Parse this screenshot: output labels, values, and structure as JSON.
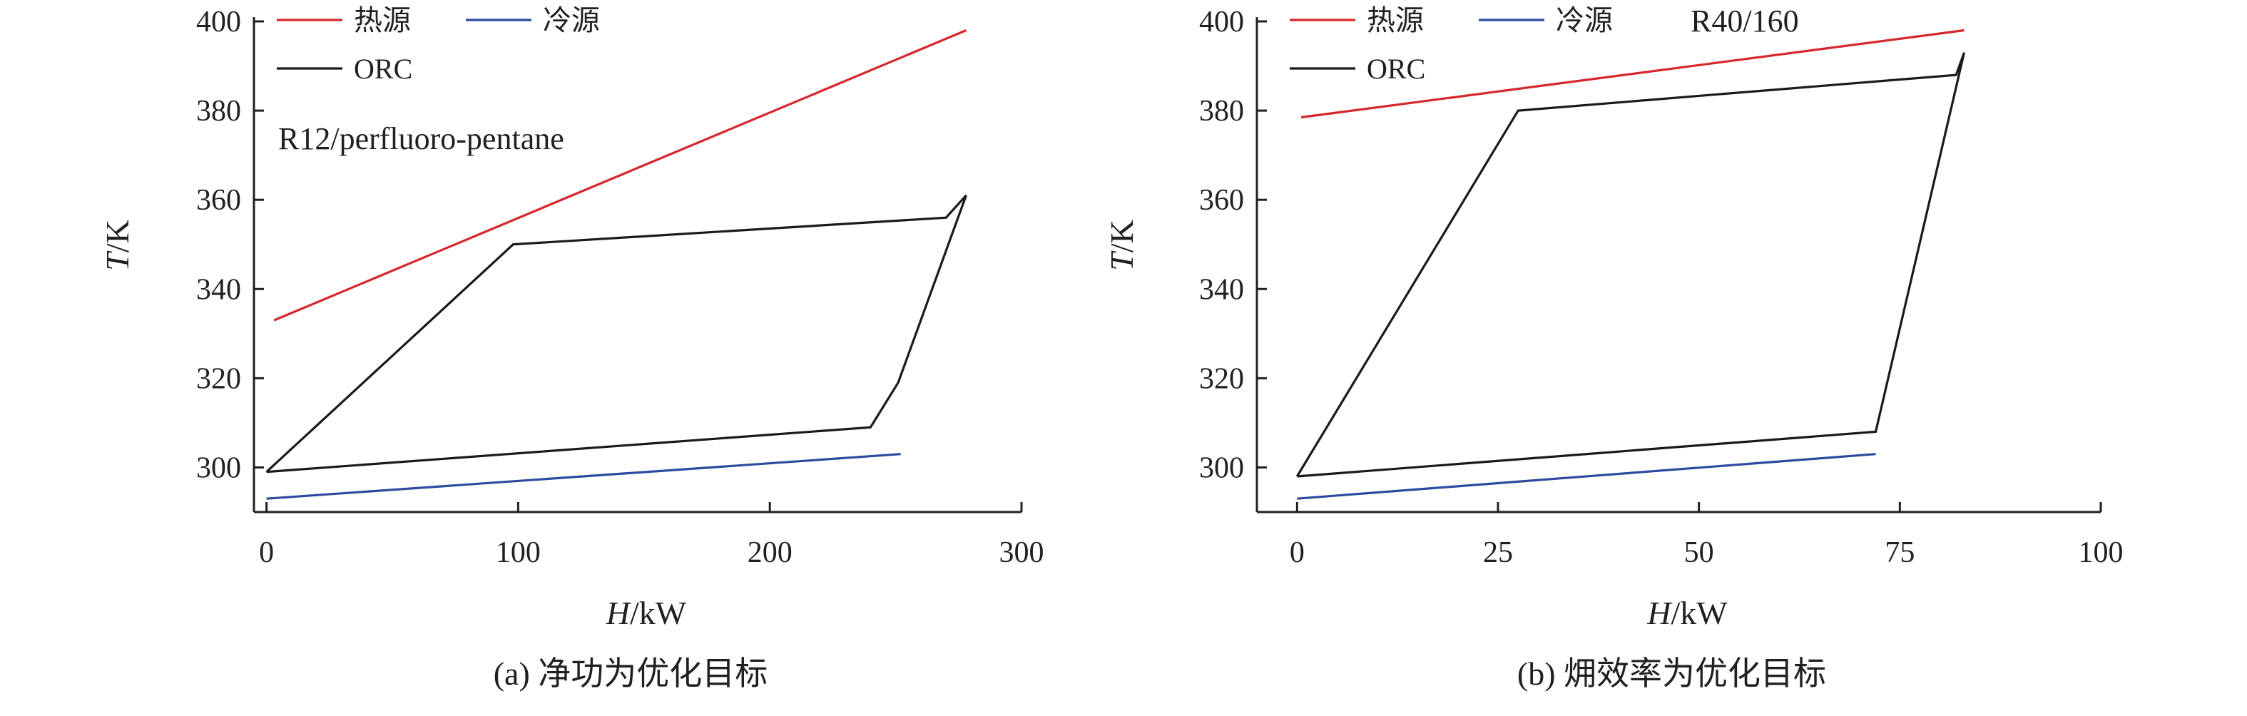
{
  "figure": {
    "colors": {
      "hot": "#d7262b",
      "cold": "#2c4b9f",
      "orc": "#1a1a1a",
      "axis": "#231f20"
    }
  },
  "chart_data": [
    {
      "id": "a",
      "type": "line",
      "caption": "(a) 净功为优化目标",
      "annotation": "R12/perfluoro-pentane",
      "xlabel": {
        "italic": "H",
        "rest": "/kW"
      },
      "ylabel": {
        "italic": "T",
        "rest": "/K"
      },
      "xlim": [
        -5,
        300
      ],
      "ylim": [
        290,
        400
      ],
      "xticks": [
        0,
        100,
        200,
        300
      ],
      "yticks": [
        300,
        320,
        340,
        360,
        380,
        400
      ],
      "legend": {
        "position": "top-left",
        "entries": [
          "热源",
          "冷源",
          "ORC"
        ]
      },
      "series": [
        {
          "name": "热源",
          "color_key": "hot",
          "points": [
            [
              3,
              333
            ],
            [
              278,
              398
            ]
          ]
        },
        {
          "name": "冷源",
          "color_key": "cold",
          "points": [
            [
              0,
              293
            ],
            [
              252,
              303
            ]
          ]
        },
        {
          "name": "ORC",
          "color_key": "orc",
          "points": [
            [
              0,
              299
            ],
            [
              98,
              350
            ],
            [
              270,
              356
            ],
            [
              278,
              361
            ],
            [
              251,
              319
            ],
            [
              240,
              309
            ],
            [
              0,
              299
            ]
          ]
        }
      ]
    },
    {
      "id": "b",
      "type": "line",
      "caption": "(b) 㶲效率为优化目标",
      "annotation": "R40/160",
      "xlabel": {
        "italic": "H",
        "rest": "/kW"
      },
      "ylabel": {
        "italic": "T",
        "rest": "/K"
      },
      "xlim": [
        -5,
        100
      ],
      "ylim": [
        290,
        400
      ],
      "xticks": [
        0,
        25,
        50,
        75,
        100
      ],
      "yticks": [
        300,
        320,
        340,
        360,
        380,
        400
      ],
      "legend": {
        "position": "top-left",
        "entries": [
          "热源",
          "冷源",
          "ORC"
        ]
      },
      "series": [
        {
          "name": "热源",
          "color_key": "hot",
          "points": [
            [
              0.5,
              378.5
            ],
            [
              83,
              398
            ]
          ]
        },
        {
          "name": "冷源",
          "color_key": "cold",
          "points": [
            [
              0,
              293
            ],
            [
              72,
              303
            ]
          ]
        },
        {
          "name": "ORC",
          "color_key": "orc",
          "points": [
            [
              0,
              298
            ],
            [
              27.5,
              380
            ],
            [
              82,
              388
            ],
            [
              83,
              393
            ],
            [
              72,
              308
            ],
            [
              0,
              298
            ]
          ]
        }
      ]
    }
  ]
}
